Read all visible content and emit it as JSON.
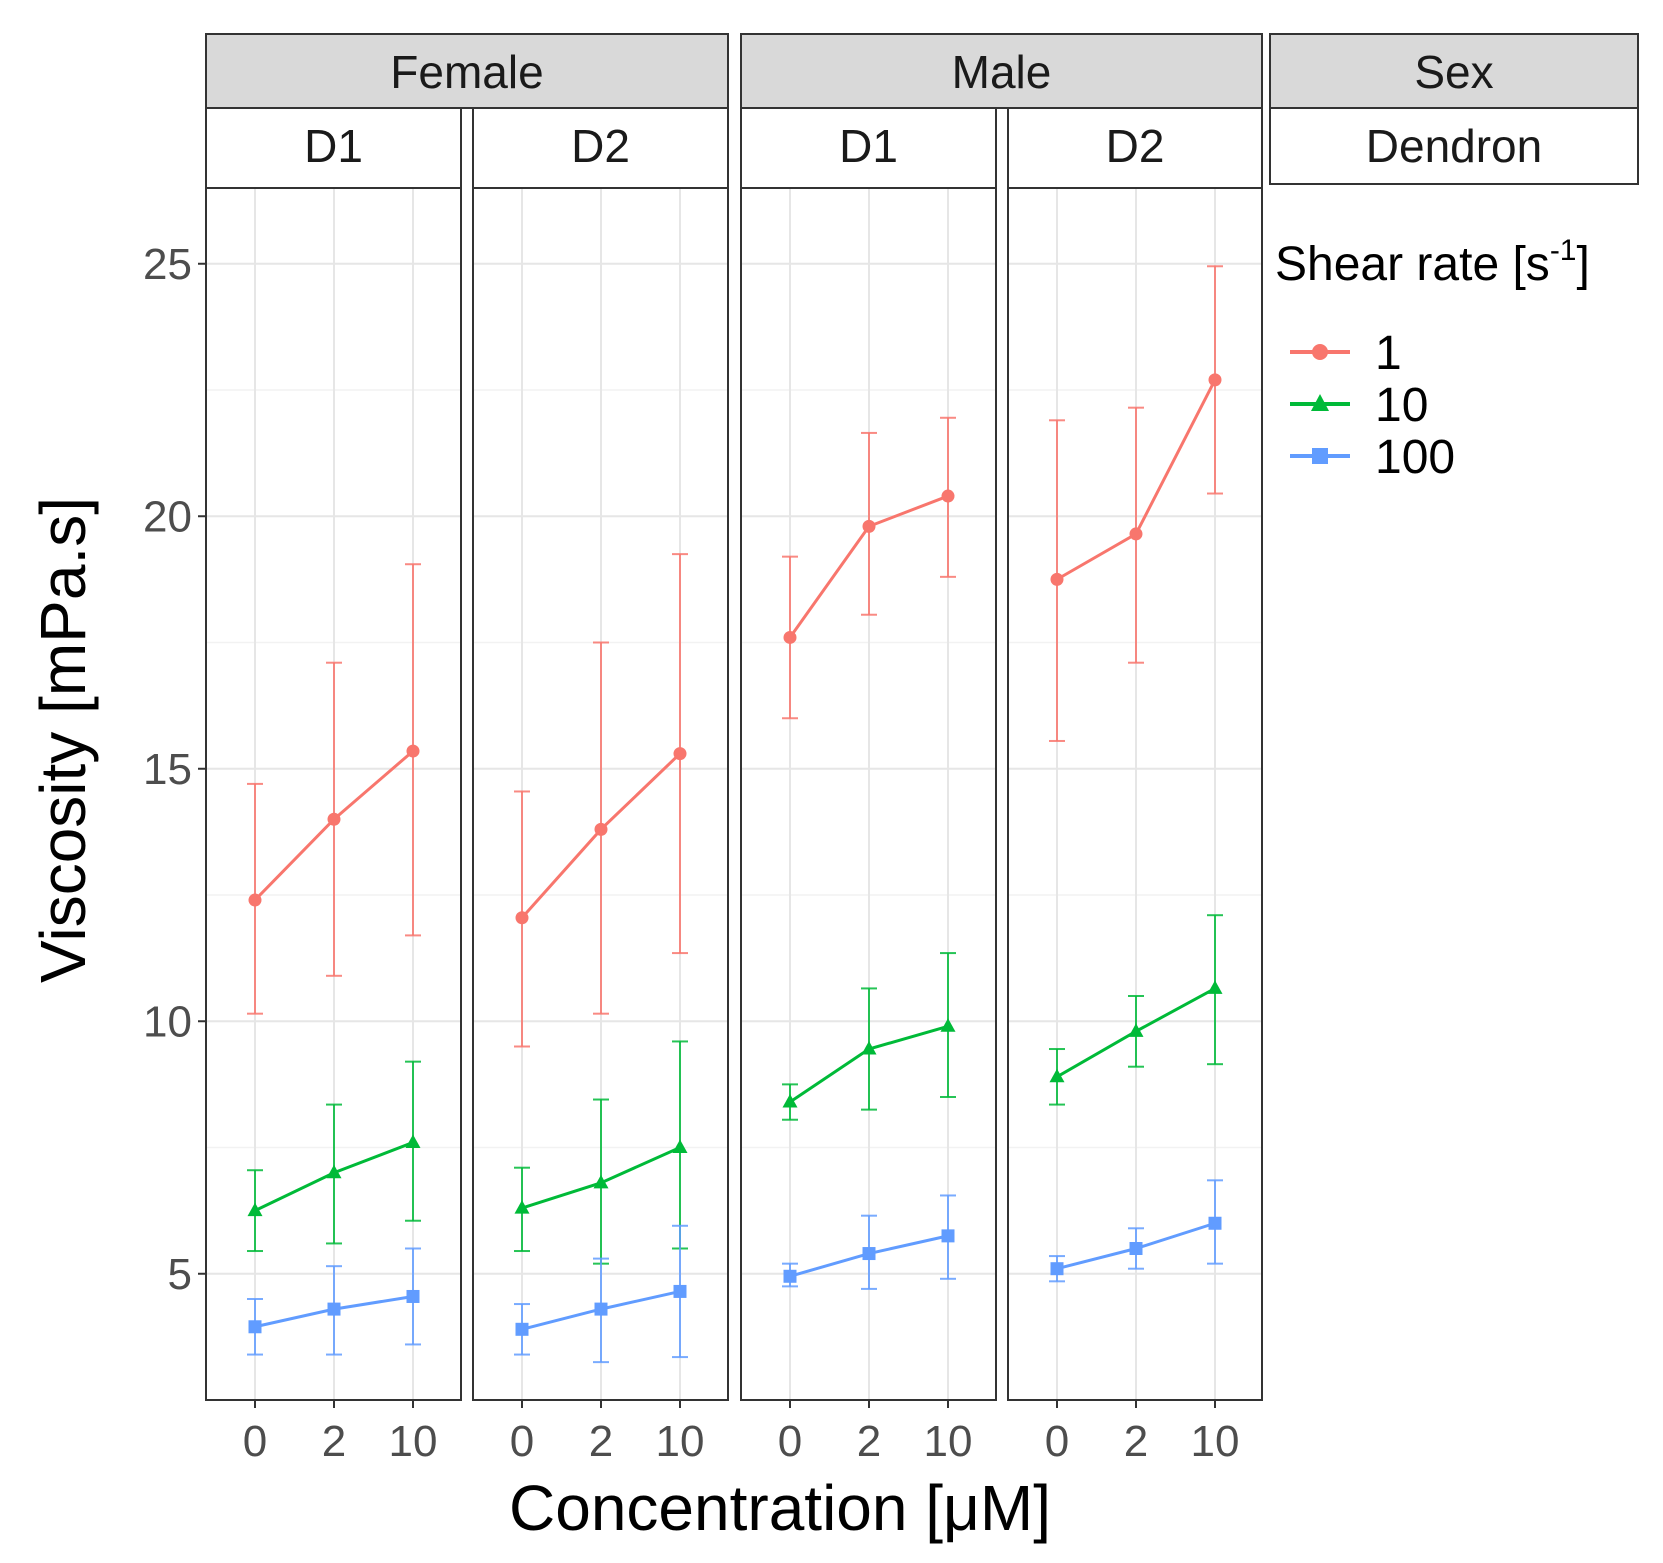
{
  "chart_data": {
    "type": "line",
    "xlabel": "Concentration [μM]",
    "ylabel": "Viscosity [mPa.s]",
    "ylim": [
      2.5,
      26.5
    ],
    "yticks": [
      5,
      10,
      15,
      20,
      25
    ],
    "categories": [
      "0",
      "2",
      "10"
    ],
    "facet_header": {
      "top": "Sex",
      "bottom": "Dendron"
    },
    "groups": [
      {
        "label": "Female",
        "panels": [
          0,
          1
        ]
      },
      {
        "label": "Male",
        "panels": [
          2,
          3
        ]
      }
    ],
    "legend": {
      "title_main": "Shear rate [s",
      "title_sup": "-1",
      "title_close": "]",
      "position": "right"
    },
    "series": [
      {
        "name": "1",
        "color": "#F8766D",
        "shape": "circle"
      },
      {
        "name": "10",
        "color": "#00BA38",
        "shape": "triangle"
      },
      {
        "name": "100",
        "color": "#619CFF",
        "shape": "square"
      }
    ],
    "panels": [
      {
        "sex": "Female",
        "dendron": "D1",
        "data": {
          "1": {
            "mean": [
              12.4,
              14.0,
              15.35
            ],
            "lower": [
              10.15,
              10.9,
              11.7
            ],
            "upper": [
              14.7,
              17.1,
              19.05
            ]
          },
          "10": {
            "mean": [
              6.25,
              7.0,
              7.6
            ],
            "lower": [
              5.45,
              5.6,
              6.05
            ],
            "upper": [
              7.05,
              8.35,
              9.2
            ]
          },
          "100": {
            "mean": [
              3.95,
              4.3,
              4.55
            ],
            "lower": [
              3.4,
              3.4,
              3.6
            ],
            "upper": [
              4.5,
              5.15,
              5.5
            ]
          }
        }
      },
      {
        "sex": "Female",
        "dendron": "D2",
        "data": {
          "1": {
            "mean": [
              12.05,
              13.8,
              15.3
            ],
            "lower": [
              9.5,
              10.15,
              11.35
            ],
            "upper": [
              14.55,
              17.5,
              19.25
            ]
          },
          "10": {
            "mean": [
              6.3,
              6.8,
              7.5
            ],
            "lower": [
              5.45,
              5.2,
              5.5
            ],
            "upper": [
              7.1,
              8.45,
              9.6
            ]
          },
          "100": {
            "mean": [
              3.9,
              4.3,
              4.65
            ],
            "lower": [
              3.4,
              3.25,
              3.35
            ],
            "upper": [
              4.4,
              5.3,
              5.95
            ]
          }
        }
      },
      {
        "sex": "Male",
        "dendron": "D1",
        "data": {
          "1": {
            "mean": [
              17.6,
              19.8,
              20.4
            ],
            "lower": [
              16.0,
              18.05,
              18.8
            ],
            "upper": [
              19.2,
              21.65,
              21.95
            ]
          },
          "10": {
            "mean": [
              8.4,
              9.45,
              9.9
            ],
            "lower": [
              8.05,
              8.25,
              8.5
            ],
            "upper": [
              8.75,
              10.65,
              11.35
            ]
          },
          "100": {
            "mean": [
              4.95,
              5.4,
              5.75
            ],
            "lower": [
              4.75,
              4.7,
              4.9
            ],
            "upper": [
              5.2,
              6.15,
              6.55
            ]
          }
        }
      },
      {
        "sex": "Male",
        "dendron": "D2",
        "data": {
          "1": {
            "mean": [
              18.75,
              19.65,
              22.7
            ],
            "lower": [
              15.55,
              17.1,
              20.45
            ],
            "upper": [
              21.9,
              22.15,
              24.95
            ]
          },
          "10": {
            "mean": [
              8.9,
              9.8,
              10.65
            ],
            "lower": [
              8.35,
              9.1,
              9.15
            ],
            "upper": [
              9.45,
              10.5,
              12.1
            ]
          },
          "100": {
            "mean": [
              5.1,
              5.5,
              6.0
            ],
            "lower": [
              4.85,
              5.1,
              5.2
            ],
            "upper": [
              5.35,
              5.9,
              6.85
            ]
          }
        }
      }
    ]
  }
}
